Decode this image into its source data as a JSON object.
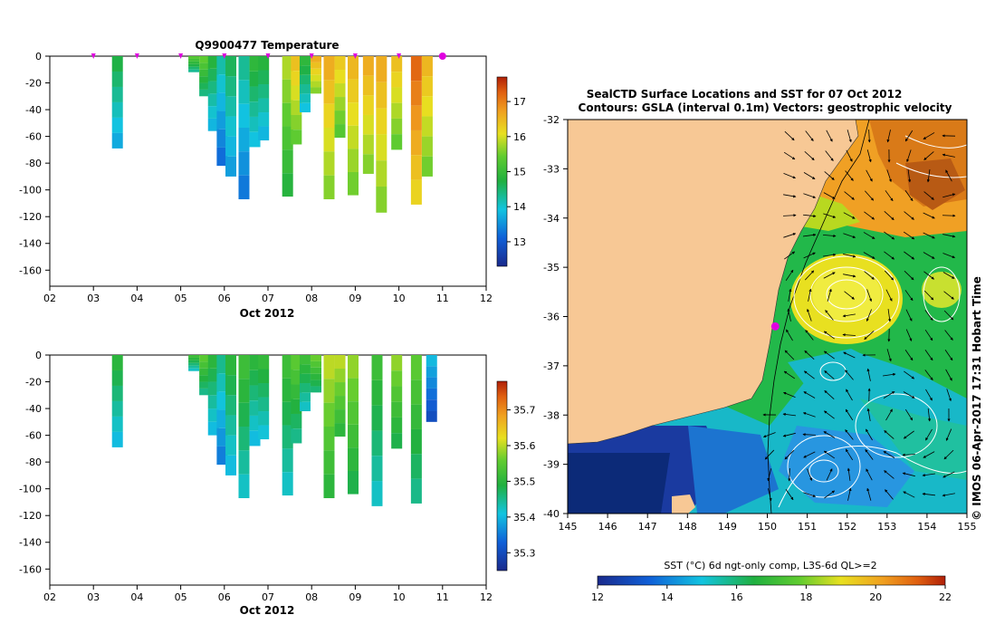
{
  "chart_data": [
    {
      "type": "heatmap",
      "title": "Q9900477  Temperature",
      "xlabel": "Oct 2012",
      "ylabel": "",
      "x_ticks": [
        "02",
        "03",
        "04",
        "05",
        "06",
        "07",
        "08",
        "09",
        "10",
        "11",
        "12"
      ],
      "xlim": [
        2,
        12
      ],
      "y_ticks": [
        "0",
        "-20",
        "-40",
        "-60",
        "-80",
        "-100",
        "-120",
        "-140",
        "-160"
      ],
      "ylim": [
        -172,
        0
      ],
      "colorbar_ticks": [
        "17",
        "16",
        "15",
        "14",
        "13"
      ],
      "colorbar_range": [
        12.3,
        17.7
      ],
      "profiles": [
        {
          "x": 3.55,
          "depth": -69,
          "value": 14.7
        },
        {
          "x": 5.3,
          "depth": -12,
          "value": 15.3
        },
        {
          "x": 5.55,
          "depth": -30,
          "value": 15.4
        },
        {
          "x": 5.75,
          "depth": -56,
          "value": 14.8
        },
        {
          "x": 5.95,
          "depth": -82,
          "value": 14.2
        },
        {
          "x": 6.15,
          "depth": -90,
          "value": 14.6
        },
        {
          "x": 6.45,
          "depth": -107,
          "value": 14.3
        },
        {
          "x": 6.7,
          "depth": -68,
          "value": 14.9
        },
        {
          "x": 6.9,
          "depth": -63,
          "value": 14.8
        },
        {
          "x": 7.45,
          "depth": -105,
          "value": 15.8
        },
        {
          "x": 7.65,
          "depth": -66,
          "value": 16.4
        },
        {
          "x": 7.85,
          "depth": -42,
          "value": 14.9
        },
        {
          "x": 8.1,
          "depth": -28,
          "value": 16.6
        },
        {
          "x": 8.4,
          "depth": -107,
          "value": 16.6
        },
        {
          "x": 8.65,
          "depth": -61,
          "value": 16.3
        },
        {
          "x": 8.95,
          "depth": -104,
          "value": 16.5
        },
        {
          "x": 9.3,
          "depth": -88,
          "value": 16.6
        },
        {
          "x": 9.6,
          "depth": -117,
          "value": 16.6
        },
        {
          "x": 9.95,
          "depth": -70,
          "value": 16.4
        },
        {
          "x": 10.4,
          "depth": -111,
          "value": 17.2
        },
        {
          "x": 10.65,
          "depth": -90,
          "value": 16.5
        }
      ]
    },
    {
      "type": "heatmap",
      "title": "",
      "xlabel": "Oct 2012",
      "ylabel": "",
      "x_ticks": [
        "02",
        "03",
        "04",
        "05",
        "06",
        "07",
        "08",
        "09",
        "10",
        "11",
        "12"
      ],
      "xlim": [
        2,
        12
      ],
      "y_ticks": [
        "0",
        "-20",
        "-40",
        "-60",
        "-80",
        "-100",
        "-120",
        "-140",
        "-160"
      ],
      "ylim": [
        -172,
        0
      ],
      "colorbar_ticks": [
        "35.7",
        "35.6",
        "35.5",
        "35.4",
        "35.3"
      ],
      "colorbar_range": [
        35.25,
        35.78
      ],
      "profiles": [
        {
          "x": 3.55,
          "depth": -69,
          "value": 35.5
        },
        {
          "x": 5.3,
          "depth": -12,
          "value": 35.52
        },
        {
          "x": 5.55,
          "depth": -30,
          "value": 35.55
        },
        {
          "x": 5.75,
          "depth": -60,
          "value": 35.5
        },
        {
          "x": 5.95,
          "depth": -82,
          "value": 35.45
        },
        {
          "x": 6.15,
          "depth": -90,
          "value": 35.5
        },
        {
          "x": 6.45,
          "depth": -107,
          "value": 35.52
        },
        {
          "x": 6.7,
          "depth": -68,
          "value": 35.5
        },
        {
          "x": 6.9,
          "depth": -63,
          "value": 35.51
        },
        {
          "x": 7.45,
          "depth": -105,
          "value": 35.52
        },
        {
          "x": 7.65,
          "depth": -66,
          "value": 35.55
        },
        {
          "x": 7.85,
          "depth": -42,
          "value": 35.52
        },
        {
          "x": 8.1,
          "depth": -28,
          "value": 35.56
        },
        {
          "x": 8.4,
          "depth": -107,
          "value": 35.6
        },
        {
          "x": 8.65,
          "depth": -61,
          "value": 35.6
        },
        {
          "x": 8.95,
          "depth": -104,
          "value": 35.58
        },
        {
          "x": 9.5,
          "depth": -113,
          "value": 35.52
        },
        {
          "x": 9.95,
          "depth": -70,
          "value": 35.58
        },
        {
          "x": 10.4,
          "depth": -111,
          "value": 35.55
        },
        {
          "x": 10.75,
          "depth": -50,
          "value": 35.4
        }
      ]
    },
    {
      "type": "map",
      "title": "SealCTD Surface Locations and SST for 07 Oct 2012",
      "subtitle": "Contours: GSLA (interval 0.1m) Vectors: geostrophic velocity",
      "x_ticks": [
        "145",
        "146",
        "147",
        "148",
        "149",
        "150",
        "151",
        "152",
        "153",
        "154",
        "155"
      ],
      "xlim": [
        145,
        155
      ],
      "y_ticks": [
        "-32",
        "-33",
        "-34",
        "-35",
        "-36",
        "-37",
        "-38",
        "-39",
        "-40"
      ],
      "ylim": [
        -40,
        -32
      ],
      "colorbar_label": "SST (°C) 6d ngt-only comp, L3S-6d QL>=2",
      "colorbar_ticks": [
        "12",
        "14",
        "16",
        "18",
        "20",
        "22"
      ],
      "colorbar_range": [
        12,
        22
      ],
      "marker": {
        "lon": 150.2,
        "lat": -36.2
      },
      "side_label": "© IMOS 06-Apr-2017 17:31 Hobart Time"
    }
  ],
  "colors": {
    "marker": "#e000e0",
    "land": "#f7c895",
    "contour": "#ffffff"
  }
}
